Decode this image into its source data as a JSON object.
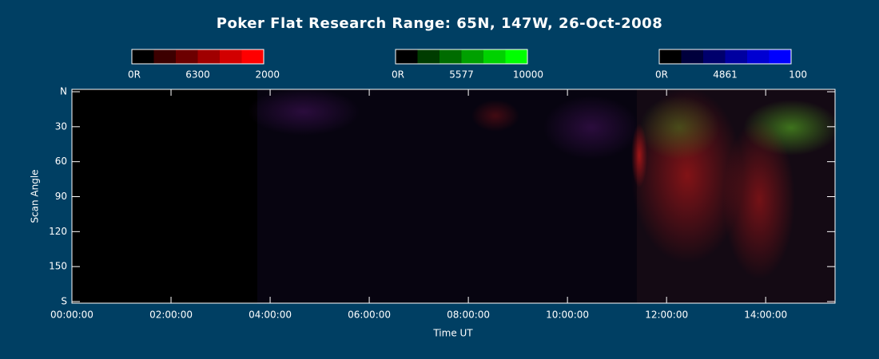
{
  "chart_data": {
    "type": "keogram",
    "title": "Poker Flat Research Range: 65N, 147W, 26-Oct-2008",
    "x_label": "Time UT",
    "y_label": "Scan Angle",
    "xlim": [
      0,
      15.4
    ],
    "xticks": [
      {
        "value": 0,
        "label": "00:00:00"
      },
      {
        "value": 2,
        "label": "02:00:00"
      },
      {
        "value": 4,
        "label": "04:00:00"
      },
      {
        "value": 6,
        "label": "06:00:00"
      },
      {
        "value": 8,
        "label": "08:00:00"
      },
      {
        "value": 10,
        "label": "10:00:00"
      },
      {
        "value": 12,
        "label": "12:00:00"
      },
      {
        "value": 14,
        "label": "14:00:00"
      }
    ],
    "ylim": [
      0,
      180
    ],
    "yticks": [
      {
        "value": 0,
        "label": "N"
      },
      30,
      60,
      90,
      120,
      150,
      {
        "value": 180,
        "label": "S"
      }
    ],
    "colorbars": [
      {
        "wavelength": 6300,
        "range": [
          {
            "value": 0,
            "label": "0R"
          },
          2000
        ],
        "colors": [
          "#000000",
          "#3c0000",
          "#6c0000",
          "#a00000",
          "#d20000",
          "#ff0000"
        ]
      },
      {
        "wavelength": 5577,
        "range": [
          {
            "value": 0,
            "label": "0R"
          },
          10000
        ],
        "colors": [
          "#000000",
          "#003c00",
          "#006c00",
          "#00a000",
          "#00d200",
          "#00ff00"
        ]
      },
      {
        "wavelength": 4861,
        "range": [
          {
            "value": 0,
            "label": "0R"
          },
          100
        ],
        "colors": [
          "#000000",
          "#00003c",
          "#00006c",
          "#0000a0",
          "#0000d2",
          "#0000ff"
        ]
      }
    ]
  }
}
